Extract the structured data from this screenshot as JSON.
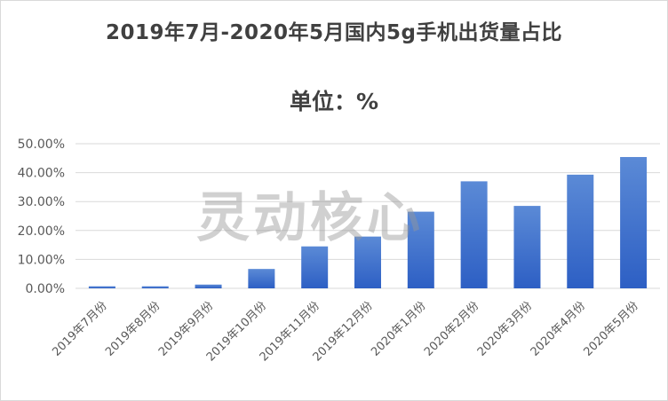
{
  "chart_data": {
    "type": "bar",
    "title": "2019年7月-2020年5月国内5g手机出货量占比",
    "subtitle": "单位：%",
    "categories": [
      "2019年7月份",
      "2019年8月份",
      "2019年9月份",
      "2019年10月份",
      "2019年11月份",
      "2019年12月份",
      "2020年1月份",
      "2020年2月份",
      "2020年3月份",
      "2020年4月份",
      "2020年5月份"
    ],
    "values": [
      0.7,
      0.7,
      1.3,
      6.7,
      14.5,
      17.9,
      26.5,
      37.0,
      28.5,
      39.3,
      45.4
    ],
    "ylim": [
      0,
      50
    ],
    "yticks": [
      "0.00%",
      "10.00%",
      "20.00%",
      "30.00%",
      "40.00%",
      "50.00%"
    ],
    "xlabel": "",
    "ylabel": "",
    "grid": true,
    "legend": "none",
    "colors": {
      "bar_top": "#5b8ad6",
      "bar_bottom": "#2d5fc4",
      "grid": "#d9d9d9",
      "text": "#595959"
    }
  },
  "watermark": "灵动核心"
}
